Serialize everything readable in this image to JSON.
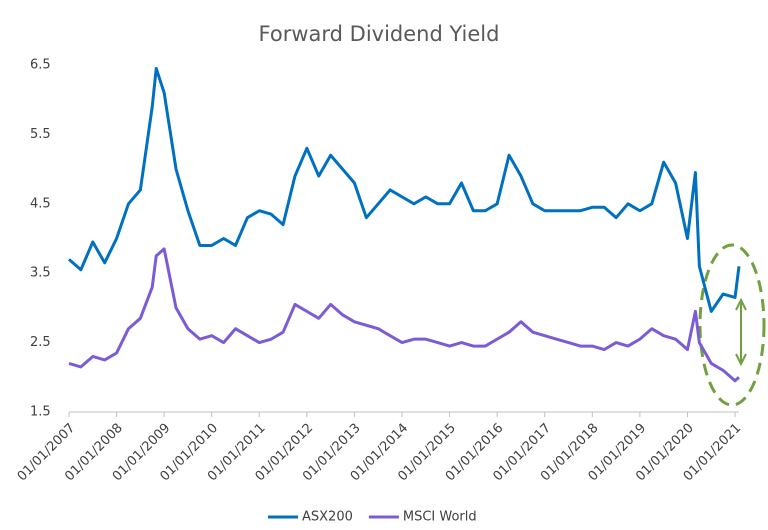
{
  "chart_data": {
    "type": "line",
    "title": "Forward Dividend Yield",
    "x": [
      "01/01/2007",
      "01/04/2007",
      "01/07/2007",
      "01/10/2007",
      "01/01/2008",
      "01/04/2008",
      "01/07/2008",
      "01/10/2008",
      "01/11/2008",
      "01/01/2009",
      "01/04/2009",
      "01/07/2009",
      "01/10/2009",
      "01/01/2010",
      "01/04/2010",
      "01/07/2010",
      "01/10/2010",
      "01/01/2011",
      "01/04/2011",
      "01/07/2011",
      "01/10/2011",
      "01/01/2012",
      "01/04/2012",
      "01/07/2012",
      "01/10/2012",
      "01/01/2013",
      "01/04/2013",
      "01/07/2013",
      "01/10/2013",
      "01/01/2014",
      "01/04/2014",
      "01/07/2014",
      "01/10/2014",
      "01/01/2015",
      "01/04/2015",
      "01/07/2015",
      "01/10/2015",
      "01/01/2016",
      "01/04/2016",
      "01/07/2016",
      "01/10/2016",
      "01/01/2017",
      "01/04/2017",
      "01/07/2017",
      "01/10/2017",
      "01/01/2018",
      "01/04/2018",
      "01/07/2018",
      "01/10/2018",
      "01/01/2019",
      "01/04/2019",
      "01/07/2019",
      "01/10/2019",
      "01/01/2020",
      "01/03/2020",
      "01/04/2020",
      "01/07/2020",
      "01/10/2020",
      "01/01/2021",
      "01/02/2021"
    ],
    "series": [
      {
        "name": "ASX200",
        "color": "#0070c0",
        "values": [
          3.7,
          3.55,
          3.95,
          3.65,
          4.0,
          4.5,
          4.7,
          5.9,
          6.45,
          6.1,
          5.0,
          4.4,
          3.9,
          3.9,
          4.0,
          3.9,
          4.3,
          4.4,
          4.35,
          4.2,
          4.9,
          5.3,
          4.9,
          5.2,
          5.0,
          4.8,
          4.3,
          4.5,
          4.7,
          4.6,
          4.5,
          4.6,
          4.5,
          4.5,
          4.8,
          4.4,
          4.4,
          4.5,
          5.2,
          4.9,
          4.5,
          4.4,
          4.4,
          4.4,
          4.4,
          4.45,
          4.45,
          4.3,
          4.5,
          4.4,
          4.5,
          5.1,
          4.8,
          4.0,
          4.95,
          3.6,
          2.95,
          3.2,
          3.15,
          3.6
        ]
      },
      {
        "name": "MSCI World",
        "color": "#7b5bd6",
        "values": [
          2.2,
          2.15,
          2.3,
          2.25,
          2.35,
          2.7,
          2.85,
          3.3,
          3.75,
          3.85,
          3.0,
          2.7,
          2.55,
          2.6,
          2.5,
          2.7,
          2.6,
          2.5,
          2.55,
          2.65,
          3.05,
          2.95,
          2.85,
          3.05,
          2.9,
          2.8,
          2.75,
          2.7,
          2.6,
          2.5,
          2.55,
          2.55,
          2.5,
          2.45,
          2.5,
          2.45,
          2.45,
          2.55,
          2.65,
          2.8,
          2.65,
          2.6,
          2.55,
          2.5,
          2.45,
          2.45,
          2.4,
          2.5,
          2.45,
          2.55,
          2.7,
          2.6,
          2.55,
          2.4,
          2.95,
          2.5,
          2.2,
          2.1,
          1.95,
          2.0
        ]
      }
    ],
    "xlim": [
      "01/01/2007",
      "01/02/2021"
    ],
    "xticks": [
      "01/01/2007",
      "01/01/2008",
      "01/01/2009",
      "01/01/2010",
      "01/01/2011",
      "01/01/2012",
      "01/01/2013",
      "01/01/2014",
      "01/01/2015",
      "01/01/2016",
      "01/01/2017",
      "01/01/2018",
      "01/01/2019",
      "01/01/2020",
      "01/01/2021"
    ],
    "ylim": [
      1.5,
      6.5
    ],
    "yticks": [
      1.5,
      2.5,
      3.5,
      4.5,
      5.5,
      6.5
    ],
    "grid": false,
    "legend": "bottom"
  }
}
